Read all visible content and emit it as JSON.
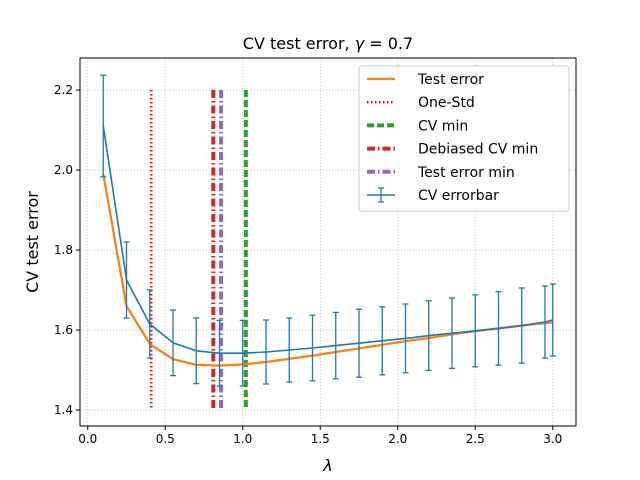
{
  "chart_data": {
    "type": "line",
    "title_prefix": "CV test error, ",
    "title_symbol": "γ",
    "title_suffix": " = 0.7",
    "xlabel": "λ",
    "ylabel": "CV test error",
    "xlim": [
      -0.05,
      3.15
    ],
    "ylim": [
      1.36,
      2.28
    ],
    "xticks": [
      0.0,
      0.5,
      1.0,
      1.5,
      2.0,
      2.5,
      3.0
    ],
    "xtick_labels": [
      "0.0",
      "0.5",
      "1.0",
      "1.5",
      "2.0",
      "2.5",
      "3.0"
    ],
    "yticks": [
      1.4,
      1.6,
      1.8,
      2.0,
      2.2
    ],
    "ytick_labels": [
      "1.4",
      "1.6",
      "1.8",
      "2.0",
      "2.2"
    ],
    "grid": true,
    "legend_position": "top-right",
    "x": [
      0.1,
      0.25,
      0.4,
      0.55,
      0.7,
      0.85,
      1.0,
      1.15,
      1.3,
      1.45,
      1.6,
      1.75,
      1.9,
      2.05,
      2.2,
      2.35,
      2.5,
      2.65,
      2.8,
      2.95,
      3.0
    ],
    "series": [
      {
        "name": "Test error",
        "kind": "line",
        "color": "#ff7f0e",
        "values": [
          1.99,
          1.66,
          1.565,
          1.527,
          1.513,
          1.511,
          1.514,
          1.52,
          1.528,
          1.536,
          1.545,
          1.554,
          1.563,
          1.572,
          1.58,
          1.589,
          1.597,
          1.604,
          1.611,
          1.617,
          1.619
        ]
      },
      {
        "name": "CV errorbar",
        "kind": "errorbar",
        "color": "#1f77b4",
        "values": [
          2.11,
          1.725,
          1.615,
          1.568,
          1.548,
          1.542,
          1.542,
          1.545,
          1.55,
          1.555,
          1.561,
          1.567,
          1.573,
          1.579,
          1.586,
          1.592,
          1.598,
          1.604,
          1.611,
          1.62,
          1.625
        ],
        "errors": [
          0.127,
          0.095,
          0.085,
          0.082,
          0.082,
          0.082,
          0.082,
          0.08,
          0.08,
          0.082,
          0.083,
          0.085,
          0.085,
          0.086,
          0.087,
          0.088,
          0.09,
          0.092,
          0.094,
          0.09,
          0.09
        ]
      }
    ],
    "vlines": [
      {
        "name": "One-Std",
        "x": 0.41,
        "ymin": 1.4,
        "ymax": 2.2,
        "color": "#ff0000",
        "style": "dotted"
      },
      {
        "name": "CV min",
        "x": 1.02,
        "ymin": 1.4,
        "ymax": 2.2,
        "color": "#2ca02c",
        "style": "dashed"
      },
      {
        "name": "Debiased CV min",
        "x": 0.81,
        "ymin": 1.4,
        "ymax": 2.2,
        "color": "#d62728",
        "style": "dashdot"
      },
      {
        "name": "Test error min",
        "x": 0.86,
        "ymin": 1.4,
        "ymax": 2.2,
        "color": "#9467bd",
        "style": "dashdot"
      }
    ],
    "legend": [
      {
        "name": "Test error",
        "color": "#ff7f0e",
        "style": "solid"
      },
      {
        "name": "One-Std",
        "color": "#ff0000",
        "style": "dotted"
      },
      {
        "name": "CV min",
        "color": "#2ca02c",
        "style": "dashed"
      },
      {
        "name": "Debiased CV min",
        "color": "#d62728",
        "style": "dashdot"
      },
      {
        "name": "Test error min",
        "color": "#9467bd",
        "style": "dashdot"
      },
      {
        "name": "CV errorbar",
        "color": "#1f77b4",
        "style": "errorbar"
      }
    ]
  }
}
